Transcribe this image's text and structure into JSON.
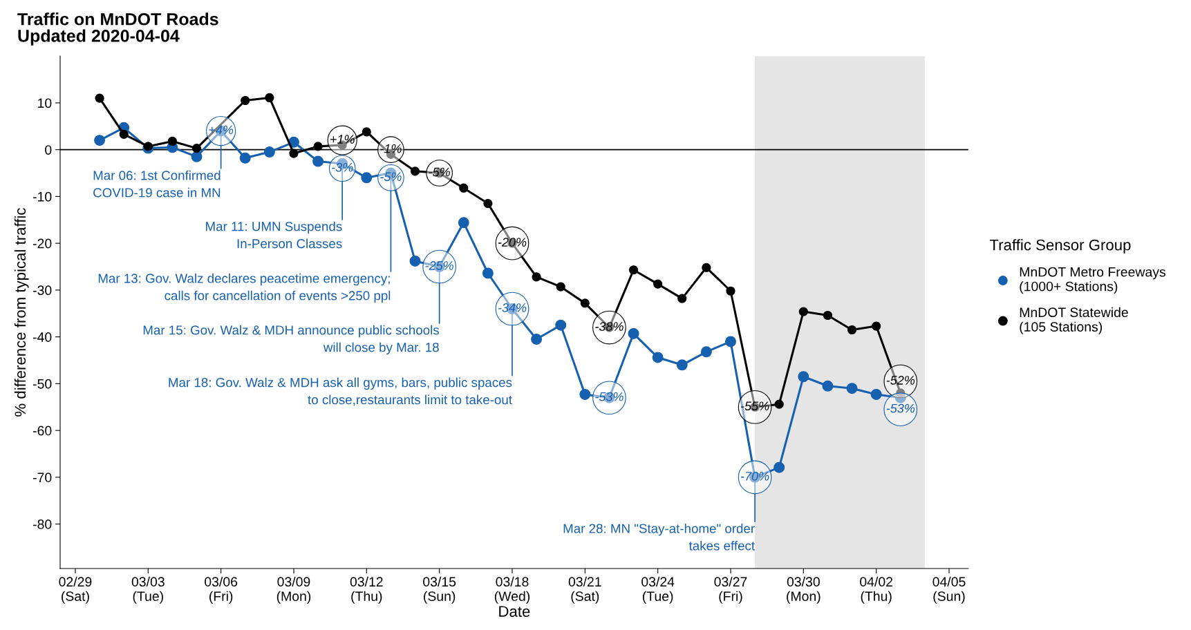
{
  "chart_data": {
    "type": "line",
    "title": "Traffic on MnDOT Roads",
    "subtitle": "Updated 2020-04-04",
    "xlabel": "Date",
    "ylabel": "% difference from typical traffic",
    "legend_title": "Traffic Sensor Group",
    "legend": "right",
    "marker": "circle",
    "line_style": "solid",
    "grid": false,
    "x": [
      "2020-03-01",
      "2020-03-02",
      "2020-03-03",
      "2020-03-04",
      "2020-03-05",
      "2020-03-06",
      "2020-03-07",
      "2020-03-08",
      "2020-03-09",
      "2020-03-10",
      "2020-03-11",
      "2020-03-12",
      "2020-03-13",
      "2020-03-14",
      "2020-03-15",
      "2020-03-16",
      "2020-03-17",
      "2020-03-18",
      "2020-03-19",
      "2020-03-20",
      "2020-03-21",
      "2020-03-22",
      "2020-03-23",
      "2020-03-24",
      "2020-03-25",
      "2020-03-26",
      "2020-03-27",
      "2020-03-28",
      "2020-03-29",
      "2020-03-30",
      "2020-03-31",
      "2020-04-01",
      "2020-04-02",
      "2020-04-03"
    ],
    "series": [
      {
        "name": "MnDOT Metro Freeways\n(1000+ Stations)",
        "color": "#1660b0",
        "values": [
          2,
          4.7,
          0.3,
          0.5,
          -1.5,
          4,
          -1.8,
          -0.5,
          1.6,
          -2.5,
          -3,
          -6,
          -5,
          -23.8,
          -25,
          -15.6,
          -26.4,
          -34,
          -40.5,
          -37.5,
          -52.3,
          -53,
          -39.3,
          -44.4,
          -46,
          -43.2,
          -41,
          -70,
          -67.9,
          -48.5,
          -50.5,
          -51,
          -52.3,
          -53
        ],
        "value_labels": [
          null,
          null,
          null,
          null,
          null,
          "+4%",
          null,
          null,
          null,
          null,
          "-3%",
          null,
          "-5%",
          null,
          "-25%",
          null,
          null,
          "-34%",
          null,
          null,
          null,
          "-53%",
          null,
          null,
          null,
          null,
          null,
          "-70%",
          null,
          null,
          null,
          null,
          null,
          "-53%"
        ]
      },
      {
        "name": "MnDOT Statewide\n(105 Stations)",
        "color": "#000000",
        "values": [
          11,
          3.3,
          0.7,
          1.8,
          0.3,
          null,
          10.5,
          11.1,
          -0.8,
          0.7,
          1,
          3.8,
          -1,
          -4.6,
          -5,
          -8.2,
          -11.5,
          -20,
          -27.2,
          -29.3,
          -32.8,
          -38,
          -25.7,
          -28.7,
          -31.8,
          -25.2,
          -30.2,
          -55,
          -54.4,
          -34.6,
          -35.4,
          -38.5,
          -37.7,
          -52
        ],
        "value_labels": [
          null,
          null,
          null,
          null,
          null,
          null,
          null,
          null,
          null,
          null,
          "+1%",
          null,
          "-1%",
          null,
          "-5%",
          null,
          null,
          "-20%",
          null,
          null,
          null,
          "-38%",
          null,
          null,
          null,
          null,
          null,
          "-55%",
          null,
          null,
          null,
          null,
          null,
          "-52%"
        ]
      }
    ],
    "xlim": [
      "2020-02-28T09:00",
      "2020-04-05T19:00"
    ],
    "xticks": [
      {
        "value": "2020-02-29",
        "label": "02/29\n(Sat)"
      },
      {
        "value": "2020-03-03",
        "label": "03/03\n(Tue)"
      },
      {
        "value": "2020-03-06",
        "label": "03/06\n(Fri)"
      },
      {
        "value": "2020-03-09",
        "label": "03/09\n(Mon)"
      },
      {
        "value": "2020-03-12",
        "label": "03/12\n(Thu)"
      },
      {
        "value": "2020-03-15",
        "label": "03/15\n(Sun)"
      },
      {
        "value": "2020-03-18",
        "label": "03/18\n(Wed)"
      },
      {
        "value": "2020-03-21",
        "label": "03/21\n(Sat)"
      },
      {
        "value": "2020-03-24",
        "label": "03/24\n(Tue)"
      },
      {
        "value": "2020-03-27",
        "label": "03/27\n(Fri)"
      },
      {
        "value": "2020-03-30",
        "label": "03/30\n(Mon)"
      },
      {
        "value": "2020-04-02",
        "label": "04/02\n(Thu)"
      },
      {
        "value": "2020-04-05",
        "label": "04/05\n(Sun)"
      }
    ],
    "ylim": [
      -89.5,
      20
    ],
    "yticks": [
      10,
      0,
      -10,
      -20,
      -30,
      -40,
      -50,
      -60,
      -70,
      -80
    ],
    "ref_lines": [
      {
        "axis": "y",
        "value": 0,
        "color": "#000000",
        "line_style": "solid"
      }
    ],
    "bands": [
      {
        "axis": "x",
        "from": "2020-03-28",
        "to": "2020-04-04",
        "color": "#e5e5e5"
      }
    ],
    "annotations": [
      {
        "text": "Mar 06: 1st Confirmed\nCOVID-19 case in MN",
        "x": "2020-03-06",
        "y": 4
      },
      {
        "text": "Mar 11: UMN Suspends\nIn-Person Classes",
        "x": "2020-03-11",
        "y": -3
      },
      {
        "text": "Mar 13: Gov. Walz declares peacetime emergency;\ncalls for cancellation of events >250 ppl",
        "x": "2020-03-13",
        "y": -5
      },
      {
        "text": "Mar 15: Gov. Walz & MDH announce public schools\nwill close by Mar. 18",
        "x": "2020-03-15",
        "y": -25
      },
      {
        "text": "Mar 18: Gov. Walz & MDH ask all gyms, bars, public spaces\nto close,restaurants limit to take-out",
        "x": "2020-03-18",
        "y": -34
      },
      {
        "text": "Mar 28: MN \"Stay-at-home\" order\ntakes effect",
        "x": "2020-03-28",
        "y": -70
      }
    ]
  }
}
